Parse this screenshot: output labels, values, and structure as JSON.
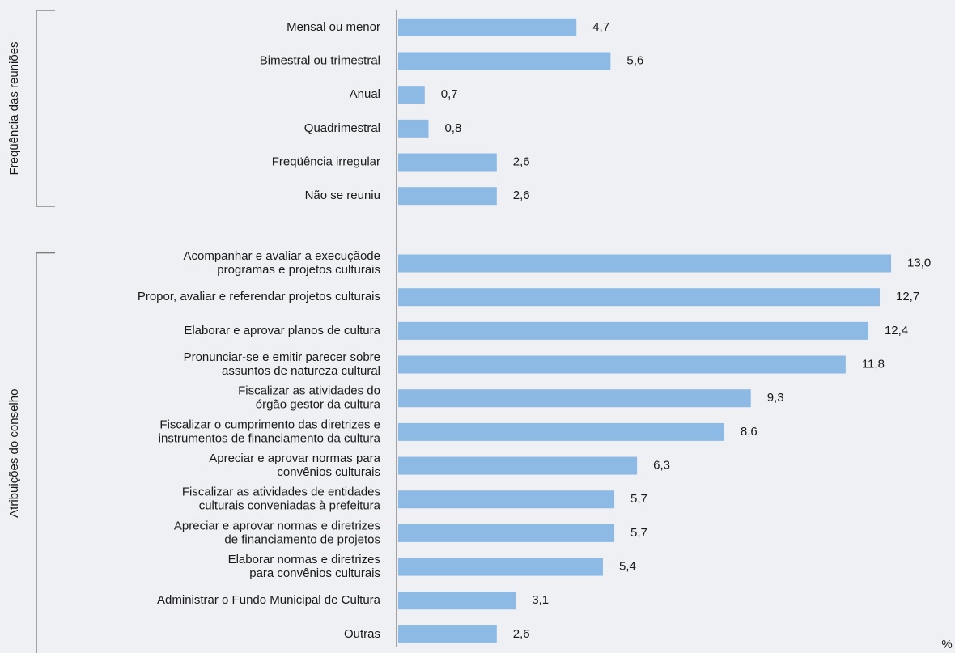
{
  "chart_data": {
    "type": "bar",
    "orientation": "horizontal",
    "color": "#8db9e5",
    "xlim": [
      0,
      14
    ],
    "xlabel": "%",
    "groups": [
      {
        "name": "Freqüência das reuniões",
        "categories": [
          "Mensal ou menor",
          "Bimestral ou trimestral",
          "Anual",
          "Quadrimestral",
          "Freqüência irregular",
          "Não se reuniu"
        ],
        "values": [
          4.7,
          5.6,
          0.7,
          0.8,
          2.6,
          2.6
        ],
        "value_labels": [
          "4,7",
          "5,6",
          "0,7",
          "0,8",
          "2,6",
          "2,6"
        ]
      },
      {
        "name": "Atribuições do conselho",
        "categories": [
          "Acompanhar e avaliar a execuçãode\nprogramas e projetos culturais",
          "Propor, avaliar e referendar projetos culturais",
          "Elaborar e aprovar planos de cultura",
          "Pronunciar-se e emitir parecer sobre\nassuntos de natureza cultural",
          "Fiscalizar as atividades do\nórgão gestor da cultura",
          "Fiscalizar o cumprimento das diretrizes e\ninstrumentos de financiamento da cultura",
          "Apreciar e aprovar normas para\nconvênios culturais",
          "Fiscalizar as atividades de entidades\nculturais conveniadas à prefeitura",
          "Apreciar e aprovar normas e diretrizes\nde financiamento de projetos",
          "Elaborar normas e diretrizes\npara convênios culturais",
          "Administrar o Fundo Municipal de Cultura",
          "Outras"
        ],
        "values": [
          13.0,
          12.7,
          12.4,
          11.8,
          9.3,
          8.6,
          6.3,
          5.7,
          5.7,
          5.4,
          3.1,
          2.6
        ],
        "value_labels": [
          "13,0",
          "12,7",
          "12,4",
          "11,8",
          "9,3",
          "8,6",
          "6,3",
          "5,7",
          "5,7",
          "5,4",
          "3,1",
          "2,6"
        ]
      }
    ]
  }
}
